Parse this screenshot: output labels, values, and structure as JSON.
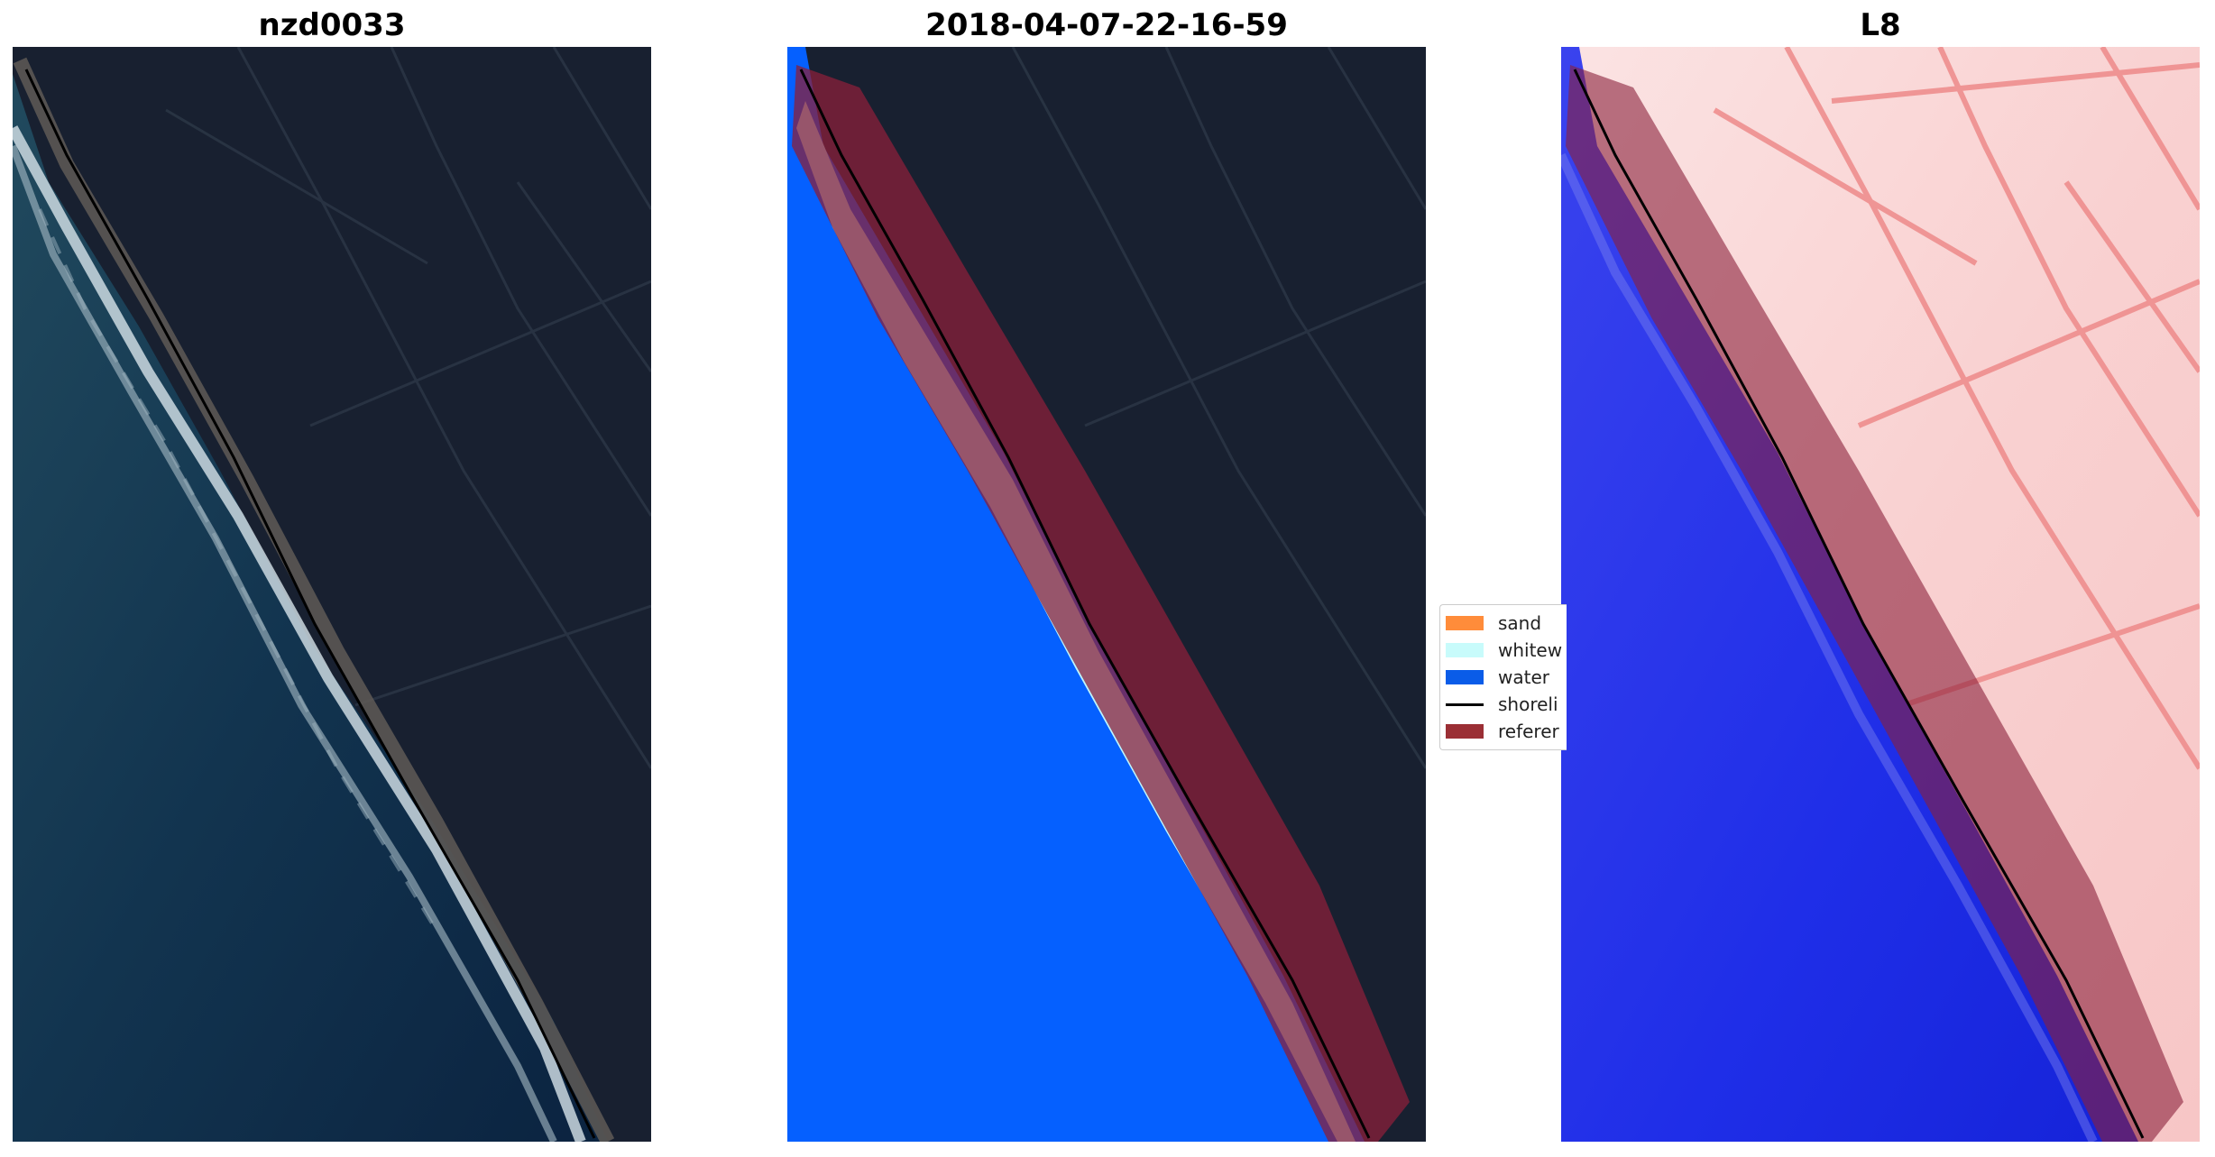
{
  "panels": [
    {
      "title": "nzd0033",
      "image": "rgb-satellite-image"
    },
    {
      "title": "2018-04-07-22-16-59",
      "image": "classified-image"
    },
    {
      "title": "L8",
      "image": "water-index-image"
    }
  ],
  "legend": {
    "items": [
      {
        "label": "sand",
        "color": "#ff8c3a",
        "kind": "patch"
      },
      {
        "label": "whitew",
        "color": "#c8fbfb",
        "kind": "patch"
      },
      {
        "label": "water",
        "color": "#0a5ce8",
        "kind": "patch"
      },
      {
        "label": "shoreli",
        "color": "#000000",
        "kind": "line"
      },
      {
        "label": "referer",
        "color": "#9b2f35",
        "kind": "patch"
      }
    ]
  },
  "colors": {
    "land": "#182030",
    "ocean": "#0d2d4b",
    "water_class": "#0560ff",
    "whitewater": "#bff6ff",
    "reference_buffer": "#8a1f3a",
    "index_land": "#fbe1e1",
    "index_water": "#2233ee"
  }
}
